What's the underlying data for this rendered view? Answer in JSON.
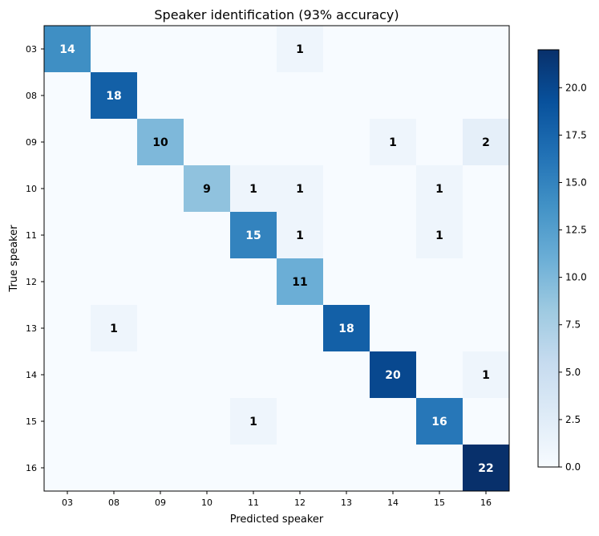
{
  "chart_data": {
    "type": "heatmap",
    "title": "Speaker identification (93% accuracy)",
    "xlabel": "Predicted speaker",
    "ylabel": "True speaker",
    "x_categories": [
      "03",
      "08",
      "09",
      "10",
      "11",
      "12",
      "13",
      "14",
      "15",
      "16"
    ],
    "y_categories": [
      "03",
      "08",
      "09",
      "10",
      "11",
      "12",
      "13",
      "14",
      "15",
      "16"
    ],
    "values": [
      [
        14,
        0,
        0,
        0,
        0,
        1,
        0,
        0,
        0,
        0
      ],
      [
        0,
        18,
        0,
        0,
        0,
        0,
        0,
        0,
        0,
        0
      ],
      [
        0,
        0,
        10,
        0,
        0,
        0,
        0,
        1,
        0,
        2
      ],
      [
        0,
        0,
        0,
        9,
        1,
        1,
        0,
        0,
        1,
        0
      ],
      [
        0,
        0,
        0,
        0,
        15,
        1,
        0,
        0,
        1,
        0
      ],
      [
        0,
        0,
        0,
        0,
        0,
        11,
        0,
        0,
        0,
        0
      ],
      [
        0,
        1,
        0,
        0,
        0,
        0,
        18,
        0,
        0,
        0
      ],
      [
        0,
        0,
        0,
        0,
        0,
        0,
        0,
        20,
        0,
        1
      ],
      [
        0,
        0,
        0,
        0,
        1,
        0,
        0,
        0,
        16,
        0
      ],
      [
        0,
        0,
        0,
        0,
        0,
        0,
        0,
        0,
        0,
        22
      ]
    ],
    "show_zero_labels": false,
    "colormap": "Blues",
    "colorbar": {
      "range": [
        0,
        22
      ],
      "ticks": [
        "0.0",
        "2.5",
        "5.0",
        "7.5",
        "10.0",
        "12.5",
        "15.0",
        "17.5",
        "20.0"
      ]
    },
    "grid": false
  }
}
